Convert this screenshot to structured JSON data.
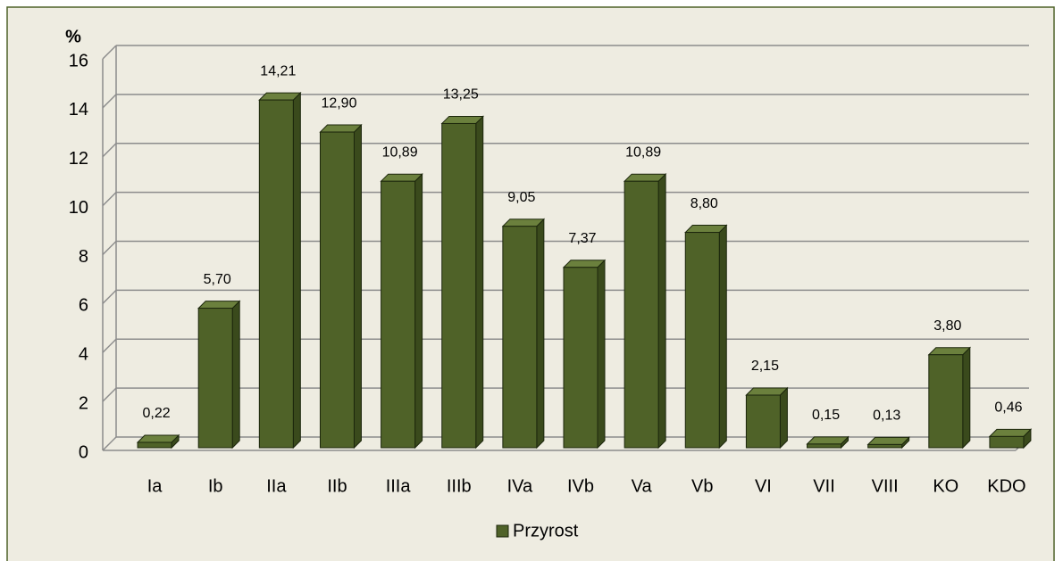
{
  "chart_data": {
    "type": "bar",
    "y_label": "%",
    "categories": [
      "Ia",
      "Ib",
      "IIa",
      "IIb",
      "IIIa",
      "IIIb",
      "IVa",
      "IVb",
      "Va",
      "Vb",
      "VI",
      "VII",
      "VIII",
      "KO",
      "KDO"
    ],
    "series": [
      {
        "name": "Przyrost",
        "color": "#4f6228",
        "values": [
          0.22,
          5.7,
          14.21,
          12.9,
          10.89,
          13.25,
          9.05,
          7.37,
          10.89,
          8.8,
          2.15,
          0.15,
          0.13,
          3.8,
          0.46
        ],
        "value_labels": [
          "0,22",
          "5,70",
          "14,21",
          "12,90",
          "10,89",
          "13,25",
          "9,05",
          "7,37",
          "10,89",
          "8,80",
          "2,15",
          "0,15",
          "0,13",
          "3,80",
          "0,46"
        ]
      }
    ],
    "ylim": [
      0,
      16
    ],
    "yticks": [
      0,
      2,
      4,
      6,
      8,
      10,
      12,
      14,
      16
    ],
    "grid": true,
    "legend": "bottom"
  }
}
